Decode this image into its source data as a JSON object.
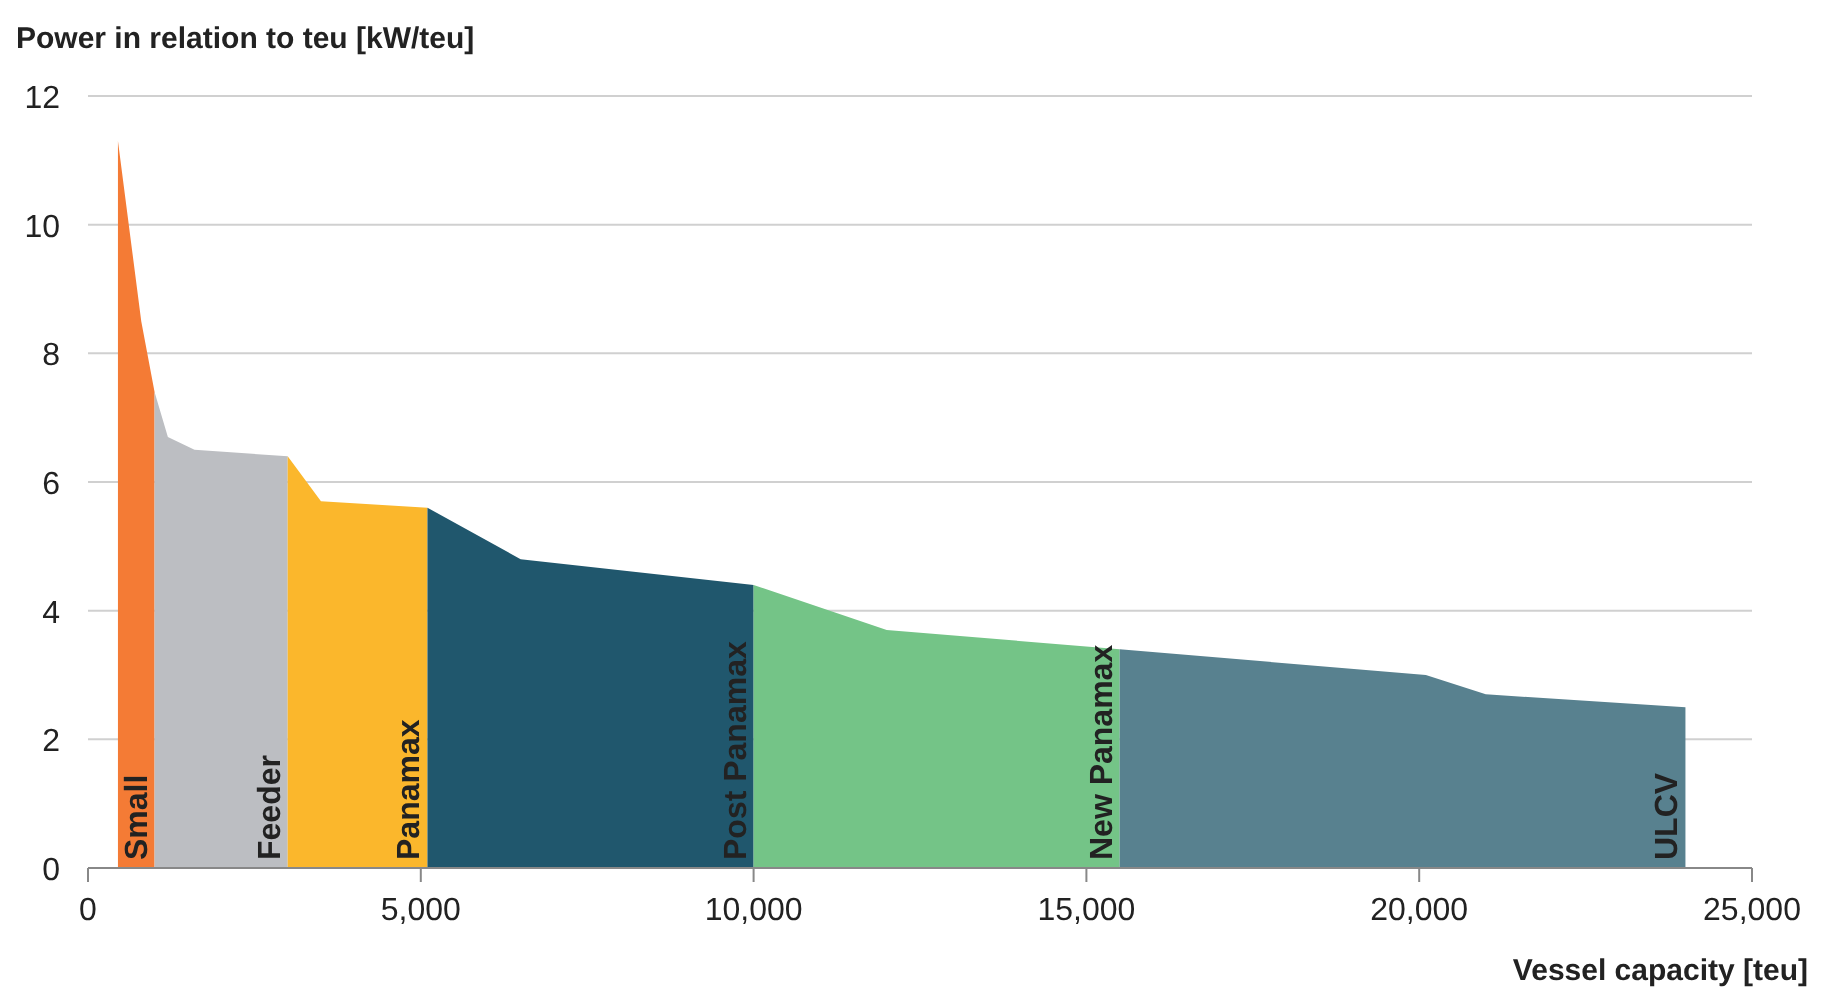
{
  "chart_data": {
    "type": "area",
    "xlabel": "Vessel capacity [teu]",
    "ylabel": "Power in relation to teu [kW/teu]",
    "xlim": [
      0,
      25000
    ],
    "xticks": [
      0,
      {
        "value": 5000,
        "label": "5,000"
      },
      {
        "value": 10000,
        "label": "10,000"
      },
      {
        "value": 15000,
        "label": "15,000"
      },
      {
        "value": 20000,
        "label": "20,000"
      },
      {
        "value": 25000,
        "label": "25,000"
      }
    ],
    "ylim": [
      0,
      12
    ],
    "yticks": [
      0,
      2,
      4,
      6,
      8,
      10,
      12
    ],
    "grid": "y",
    "series": [
      {
        "name": "Small",
        "color": "#f47b35",
        "x": [
          450,
          800,
          1000
        ],
        "values": [
          11.3,
          8.5,
          7.4
        ]
      },
      {
        "name": "Feeder",
        "color": "#bcbec2",
        "x": [
          1000,
          1200,
          1600,
          3000
        ],
        "values": [
          7.4,
          6.7,
          6.5,
          6.4
        ]
      },
      {
        "name": "Panamax",
        "color": "#fbb72c",
        "x": [
          3000,
          3500,
          5100
        ],
        "values": [
          6.4,
          5.7,
          5.6
        ]
      },
      {
        "name": "Post Panamax",
        "color": "#20576d",
        "x": [
          5100,
          6500,
          10000
        ],
        "values": [
          5.6,
          4.8,
          4.4
        ]
      },
      {
        "name": "New Panamax",
        "color": "#74c487",
        "x": [
          10000,
          12000,
          15500
        ],
        "values": [
          4.4,
          3.7,
          3.4
        ]
      },
      {
        "name": "ULCV",
        "color": "#58818f",
        "x": [
          15500,
          20100,
          21000,
          24000
        ],
        "values": [
          3.4,
          3.0,
          2.7,
          2.5
        ]
      }
    ]
  }
}
